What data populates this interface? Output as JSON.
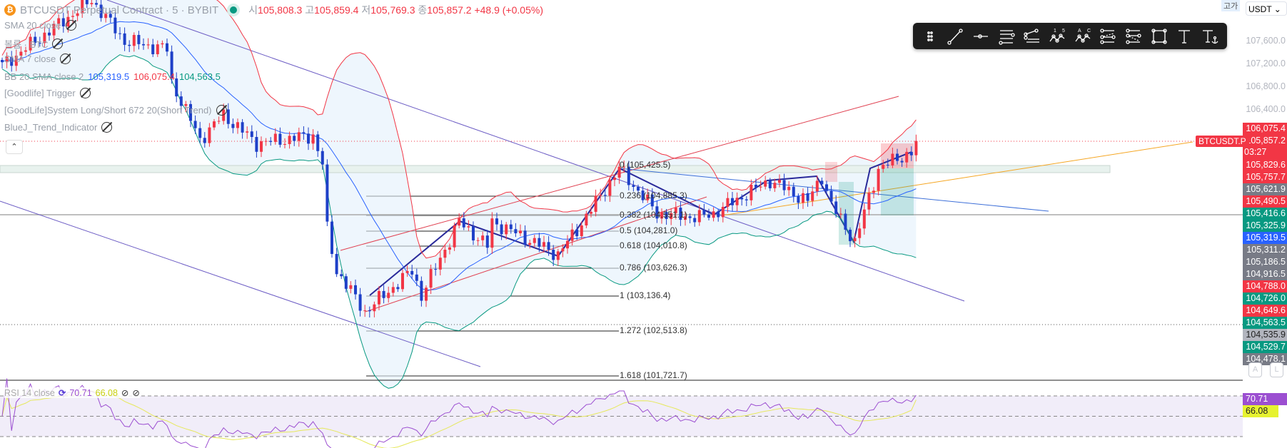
{
  "header": {
    "symbol_title": "BTCUSDT Perpetual Contract · 5 · BYBIT",
    "ohlc": {
      "open_label": "시",
      "open": "105,808.3",
      "high_label": "고",
      "high": "105,859.4",
      "low_label": "저",
      "low": "105,769.3",
      "close_label": "종",
      "close": "105,857.2",
      "change": "+48.9 (+0.05%)"
    }
  },
  "indicators": [
    {
      "label": "SMA 20 close",
      "hidden": true
    },
    {
      "label": "볼륨 · BTC",
      "hidden": true
    },
    {
      "label": "SMA 7 close",
      "hidden": true
    },
    {
      "label": "BB 20 SMA close 2",
      "values": [
        "105,319.5",
        "106,075.4",
        "104,563.5"
      ],
      "colors": [
        "#2962ff",
        "#f23645",
        "#089981"
      ]
    },
    {
      "label": "[Goodlife] Trigger",
      "hidden": true
    },
    {
      "label": "[GoodLife]System Long/Short 672 20(Short Trend)",
      "hidden": true
    },
    {
      "label": "BlueJ_Trend_Indicator",
      "hidden": true
    }
  ],
  "collapse_icon": "chevron-up-icon",
  "toolbar": {
    "icons": [
      "drag-handle-icon",
      "trend-line-icon",
      "horizontal-ray-icon",
      "parallel-channel-icon",
      "fib-retracement-icon",
      "elliott-wave-icon",
      "abcd-pattern-icon",
      "fib-channel-icon",
      "fib-extension-icon",
      "rectangle-icon",
      "text-icon",
      "anchored-text-icon"
    ],
    "wave_labels": [
      "1",
      "5",
      "A",
      "C"
    ]
  },
  "price_axis": {
    "currency": "USDT",
    "high_tag": "고가",
    "ticks": [
      "107,600.0",
      "107,200.0",
      "106,800.0",
      "106,400.0"
    ],
    "labels": [
      {
        "v": "106,075.4",
        "c": "#f23645"
      },
      {
        "v": "105,857.2",
        "c": "#f23645",
        "sub": "03:27"
      },
      {
        "v": "105,829.6",
        "c": "#f23645"
      },
      {
        "v": "105,757.7",
        "c": "#f23645"
      },
      {
        "v": "105,621.9",
        "c": "#787b86"
      },
      {
        "v": "105,490.5",
        "c": "#f23645"
      },
      {
        "v": "105,416.6",
        "c": "#089981"
      },
      {
        "v": "105,325.9",
        "c": "#089981"
      },
      {
        "v": "105,319.5",
        "c": "#2962ff"
      },
      {
        "v": "105,311.2",
        "c": "#787b86"
      },
      {
        "v": "105,186.5",
        "c": "#787b86"
      },
      {
        "v": "104,916.5",
        "c": "#787b86"
      },
      {
        "v": "104,788.0",
        "c": "#f23645"
      },
      {
        "v": "104,726.0",
        "c": "#089981"
      },
      {
        "v": "104,649.6",
        "c": "#f23645"
      },
      {
        "v": "104,563.5",
        "c": "#089981"
      },
      {
        "v": "104,535.9",
        "c": "#b2b5be",
        "dark": true
      },
      {
        "v": "104,529.7",
        "c": "#089981"
      },
      {
        "v": "104,478.1",
        "c": "#787b86"
      }
    ],
    "symbol_tag": "BTCUSDT.P",
    "auto_button": "A",
    "log_button": "L"
  },
  "fib": [
    {
      "level": "0",
      "price": "105,425.5"
    },
    {
      "level": "0.236",
      "price": "104,885.3"
    },
    {
      "level": "0.382",
      "price": "104,551.1"
    },
    {
      "level": "0.5",
      "price": "104,281.0"
    },
    {
      "level": "0.618",
      "price": "104,010.8"
    },
    {
      "level": "0.786",
      "price": "103,626.3"
    },
    {
      "level": "1",
      "price": "103,136.4"
    },
    {
      "level": "1.272",
      "price": "102,513.8"
    },
    {
      "level": "1.618",
      "price": "101,721.7"
    }
  ],
  "rsi": {
    "label": "RSI 14 close",
    "value": "70.71",
    "ma": "66.08",
    "value_color": "#9c4fd1",
    "ma_color": "#e6f230",
    "levels": [
      70,
      50,
      30
    ]
  },
  "colors": {
    "up": "#f23645",
    "down": "#1e40c8",
    "bb_upper": "#f23645",
    "bb_mid": "#2962ff",
    "bb_lower": "#089981"
  },
  "chart_data": {
    "type": "candlestick",
    "symbol": "BTCUSDT.P",
    "timeframe": "5",
    "close_waypoints": [
      [
        0,
        107178
      ],
      [
        19,
        108329
      ],
      [
        26,
        107609
      ],
      [
        35,
        107466
      ],
      [
        36,
        106890
      ],
      [
        42,
        105882
      ],
      [
        47,
        106314
      ],
      [
        54,
        105813
      ],
      [
        66,
        105951
      ],
      [
        68,
        105450
      ],
      [
        69,
        104299
      ],
      [
        71,
        103579
      ],
      [
        77,
        102860
      ],
      [
        87,
        103579
      ],
      [
        89,
        103148
      ],
      [
        97,
        104443
      ],
      [
        103,
        104011
      ],
      [
        104,
        104443
      ],
      [
        118,
        103867
      ],
      [
        122,
        104299
      ],
      [
        131,
        105375
      ],
      [
        139,
        104587
      ],
      [
        148,
        104512
      ],
      [
        151,
        104587
      ],
      [
        163,
        105163
      ],
      [
        171,
        104800
      ],
      [
        174,
        105238
      ],
      [
        176,
        104731
      ],
      [
        181,
        104086
      ],
      [
        186,
        105375
      ],
      [
        193,
        105663
      ],
      [
        194,
        105857.2
      ]
    ],
    "last_price": 105857.2,
    "y_axis_ticks": [
      107600,
      107200,
      106800,
      106400
    ]
  }
}
